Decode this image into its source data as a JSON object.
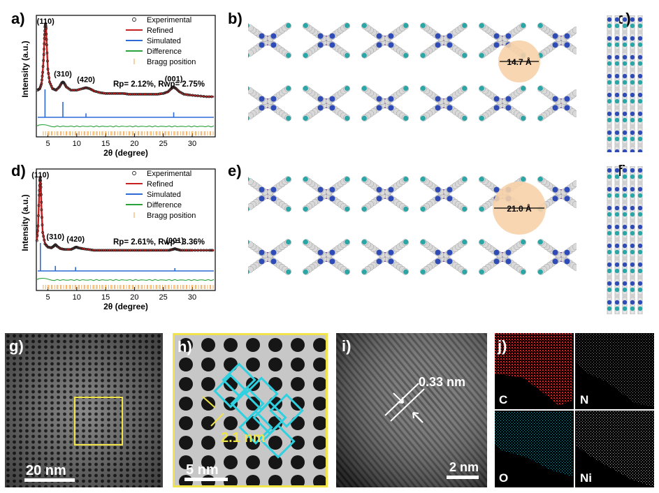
{
  "panels": {
    "a": "a)",
    "b": "b)",
    "c": "c)",
    "d": "d)",
    "e": "e)",
    "f": "f)",
    "g": "g)",
    "h": "h)",
    "i": "i)",
    "j": "j)"
  },
  "chart_data": [
    {
      "id": "a",
      "type": "line",
      "xlabel": "2θ (degree)",
      "ylabel": "Intensity (a.u.)",
      "xlim": [
        3,
        34
      ],
      "xticks": [
        5,
        10,
        15,
        20,
        25,
        30
      ],
      "legend": [
        "Experimental",
        "Refined",
        "Simulated",
        "Difference",
        "Bragg position"
      ],
      "legend_position": "top-right",
      "stats_text": "Rp= 2.12%, Rwp= 2.75%",
      "peak_labels": [
        {
          "text": "(110)",
          "x": 4.6
        },
        {
          "text": "(310)",
          "x": 7.6
        },
        {
          "text": "(420)",
          "x": 11.6
        },
        {
          "text": "(001)",
          "x": 26.8
        }
      ],
      "series": [
        {
          "name": "Experimental",
          "x": [
            3.2,
            3.6,
            3.9,
            4.1,
            4.3,
            4.4,
            4.5,
            4.6,
            4.7,
            4.8,
            5.0,
            5.3,
            5.8,
            6.4,
            7.0,
            7.4,
            7.6,
            7.8,
            8.2,
            9.0,
            10.0,
            11.0,
            11.6,
            12.2,
            13.0,
            14.0,
            15.0,
            16.0,
            17.0,
            18.0,
            19.0,
            20.0,
            21.0,
            22.0,
            23.0,
            24.0,
            25.0,
            25.8,
            26.4,
            26.8,
            27.2,
            27.8,
            28.6,
            29.6,
            31.0,
            32.5,
            33.8
          ],
          "y": [
            18,
            20,
            26,
            40,
            62,
            82,
            96,
            100,
            94,
            74,
            44,
            28,
            20,
            18,
            22,
            27,
            28,
            27,
            22,
            18,
            18,
            20,
            21,
            20,
            17,
            15,
            14,
            14,
            14,
            14,
            13,
            13,
            13,
            13,
            13,
            13,
            14,
            16,
            20,
            22,
            20,
            16,
            13,
            12,
            11,
            10,
            10
          ]
        },
        {
          "name": "Simulated",
          "peaks_x": [
            4.5,
            7.6,
            11.6,
            26.8
          ],
          "peaks_y": [
            100,
            55,
            14,
            18
          ]
        },
        {
          "name": "Difference",
          "note": "flat near zero"
        }
      ]
    },
    {
      "id": "d",
      "type": "line",
      "xlabel": "2θ (degree)",
      "ylabel": "Intensity (a.u.)",
      "xlim": [
        3,
        34
      ],
      "xticks": [
        5,
        10,
        15,
        20,
        25,
        30
      ],
      "legend": [
        "Experimental",
        "Refined",
        "Simulated",
        "Difference",
        "Bragg position"
      ],
      "legend_position": "top-right",
      "stats_text": "Rp= 2.61%, Rwp= 3.36%",
      "peak_labels": [
        {
          "text": "(110)",
          "x": 3.7
        },
        {
          "text": "(310)",
          "x": 6.3
        },
        {
          "text": "(420)",
          "x": 9.8
        },
        {
          "text": "(001)",
          "x": 27.0
        }
      ],
      "series": [
        {
          "name": "Experimental",
          "x": [
            3.1,
            3.3,
            3.5,
            3.6,
            3.7,
            3.8,
            3.9,
            4.1,
            4.5,
            5.0,
            5.6,
            6.0,
            6.3,
            6.6,
            7.2,
            8.0,
            9.0,
            9.6,
            9.9,
            10.3,
            11.0,
            12.0,
            13.0,
            14.0,
            15.0,
            16.0,
            17.0,
            18.0,
            19.0,
            20.0,
            21.0,
            22.0,
            23.0,
            24.0,
            25.0,
            26.0,
            26.6,
            27.0,
            27.4,
            28.0,
            29.0,
            30.0,
            31.5,
            33.0,
            33.8
          ],
          "y": [
            22,
            40,
            78,
            96,
            100,
            88,
            60,
            32,
            18,
            14,
            13,
            15,
            17,
            15,
            12,
            11,
            11,
            13,
            14,
            13,
            12,
            11,
            10,
            10,
            10,
            10,
            10,
            10,
            10,
            10,
            10,
            10,
            10,
            10,
            10,
            10,
            11,
            12,
            11,
            10,
            10,
            10,
            10,
            10,
            10
          ]
        },
        {
          "name": "Simulated",
          "peaks_x": [
            3.7,
            6.3,
            9.8,
            27.0
          ],
          "peaks_y": [
            100,
            18,
            14,
            10
          ]
        },
        {
          "name": "Difference",
          "note": "flat near zero"
        }
      ]
    }
  ],
  "structure": {
    "b_pore": "14.7 Å",
    "e_pore": "21.0 Å"
  },
  "microscopy": {
    "g_scale": "20 nm",
    "h_scale": "5 nm",
    "h_pore": "2.1 nm",
    "i_scale": "2 nm",
    "i_spacing": "0.33 nm"
  },
  "eds": {
    "labels": [
      "C",
      "N",
      "O",
      "Ni"
    ],
    "colors": [
      "#d81f1f",
      "#2fbf3a",
      "#17b7c8",
      "#d6d21e"
    ]
  }
}
